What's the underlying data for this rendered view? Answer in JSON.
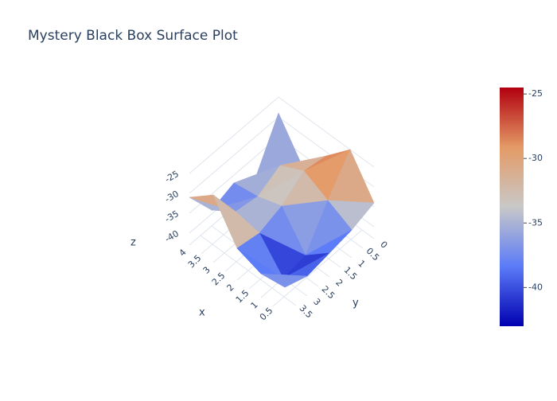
{
  "chart_data": {
    "type": "surface",
    "title": "Mystery Black Box Surface Plot",
    "x_label": "x",
    "y_label": "y",
    "z_label": "z",
    "x": [
      0,
      1,
      2,
      3,
      4
    ],
    "y": [
      0,
      1,
      2,
      3,
      4
    ],
    "z": [
      [
        -34,
        -25,
        -31,
        -38,
        -29
      ],
      [
        -36,
        -33,
        -30,
        -33,
        -40
      ],
      [
        -37,
        -42,
        -34,
        -36,
        -37
      ],
      [
        -38,
        -43,
        -36,
        -35,
        -39
      ],
      [
        -36,
        -37,
        -35,
        -26,
        -31
      ]
    ],
    "xticks": [
      0.5,
      1,
      1.5,
      2,
      2.5,
      3,
      3.5,
      4
    ],
    "yticks": [
      0,
      0.5,
      1,
      1.5,
      2,
      2.5,
      3,
      3.5
    ],
    "zlim": [
      -43,
      -24.5
    ],
    "zticks": [
      -40,
      -35,
      -30,
      -25
    ],
    "colorscale": [
      [
        0,
        "#0000b0"
      ],
      [
        0.25,
        "#5b7bf8"
      ],
      [
        0.5,
        "#c8c8c8"
      ],
      [
        0.75,
        "#e49a66"
      ],
      [
        1,
        "#b2000f"
      ]
    ],
    "grid": true
  }
}
